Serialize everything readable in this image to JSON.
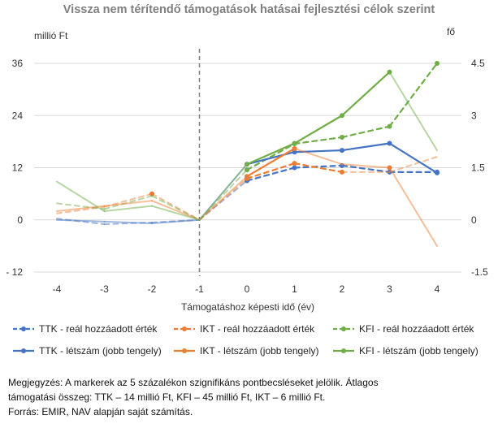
{
  "chart_data": {
    "type": "line",
    "title": "Vissza nem térítendő támogatások hatásai fejlesztési célok szerint",
    "xlabel": "Támogatáshoz képesti idő (év)",
    "ylabel_left": "millió Ft",
    "ylabel_right": "fő",
    "x": [
      -4,
      -3,
      -2,
      -1,
      0,
      1,
      2,
      3,
      4
    ],
    "x_tick_labels": [
      "-4",
      "-3",
      "-2",
      "-1",
      "0",
      "1",
      "2",
      "3",
      "4"
    ],
    "y_left_ticks": [
      -12,
      0,
      12,
      24,
      36
    ],
    "y_left_tick_labels": [
      "- 12",
      "0",
      "12",
      "24",
      "36"
    ],
    "y_right_ticks": [
      -1.5,
      0,
      1.5,
      3,
      4.5
    ],
    "y_right_tick_labels": [
      "-1.5",
      "0",
      "1.5",
      "3",
      "4.5"
    ],
    "ylim_left": [
      -12,
      36
    ],
    "ylim_right": [
      -1.5,
      4.5
    ],
    "reference_line_x": -1,
    "grid": "horizontal",
    "legend_position": "bottom",
    "series": [
      {
        "name": "TTK - reál hozzáadott érték",
        "axis": "left",
        "style": "dashed",
        "color": "#4472c4",
        "values": [
          0.3,
          -1.0,
          -0.6,
          0,
          9.0,
          12.0,
          12.5,
          11.0,
          11.0
        ],
        "markers": [
          false,
          false,
          false,
          false,
          true,
          true,
          true,
          true,
          true
        ]
      },
      {
        "name": "IKT - reál hozzáadott érték",
        "axis": "left",
        "style": "dashed",
        "color": "#ed7d31",
        "values": [
          1.5,
          3.0,
          6.0,
          0,
          9.5,
          13.0,
          11.0,
          11.0,
          14.5
        ],
        "markers": [
          false,
          false,
          true,
          false,
          true,
          true,
          true,
          false,
          false
        ]
      },
      {
        "name": "KFI - reál hozzáadott érték",
        "axis": "left",
        "style": "dashed",
        "color": "#70ad47",
        "values": [
          3.8,
          2.5,
          5.5,
          0,
          11.5,
          17.5,
          19.0,
          21.5,
          36.0
        ],
        "markers": [
          false,
          false,
          false,
          false,
          true,
          true,
          true,
          true,
          true
        ]
      },
      {
        "name": "TTK - létszám (jobb tengely)",
        "axis": "right",
        "style": "solid",
        "color": "#4472c4",
        "values": [
          0.0,
          -0.05,
          -0.1,
          0,
          1.6,
          1.95,
          2.0,
          2.2,
          1.35
        ],
        "markers": [
          false,
          false,
          false,
          false,
          true,
          true,
          true,
          true,
          true
        ]
      },
      {
        "name": "IKT - létszám (jobb tengely)",
        "axis": "right",
        "style": "solid",
        "color": "#ed7d31",
        "values": [
          0.25,
          0.4,
          0.55,
          0,
          1.25,
          2.05,
          1.6,
          1.5,
          -0.75
        ],
        "markers": [
          false,
          false,
          false,
          false,
          true,
          true,
          false,
          true,
          false
        ]
      },
      {
        "name": "KFI - létszám (jobb tengely)",
        "axis": "right",
        "style": "solid",
        "color": "#70ad47",
        "values": [
          1.1,
          0.25,
          0.4,
          0,
          1.6,
          2.2,
          3.0,
          4.25,
          2.0
        ],
        "markers": [
          false,
          false,
          false,
          false,
          true,
          true,
          true,
          true,
          false
        ]
      }
    ],
    "light_series_values_note": ""
  },
  "note": {
    "line1": "Megjegyzés: A markerek az 5 százalékon szignifikáns pontbecsléseket jelölik. Átlagos",
    "line2": "támogatási összeg: TTK – 14 millió Ft, KFI – 45 millió Ft, IKT – 6 millió Ft.",
    "line3": "Forrás: EMIR, NAV alapján saját számítás."
  }
}
